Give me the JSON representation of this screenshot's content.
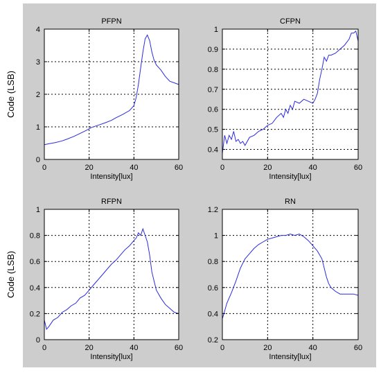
{
  "colors": {
    "panel_bg": "#cdcdcd",
    "axes_bg": "#ffffff",
    "line": "#2a2adf",
    "grid": "#000000"
  },
  "chart_data": [
    {
      "type": "line",
      "title": "PFPN",
      "xlabel": "Intensity[lux]",
      "ylabel": "Code (LSB)",
      "xlim": [
        0,
        60
      ],
      "ylim": [
        0,
        4
      ],
      "xticks": [
        0,
        20,
        40,
        60
      ],
      "yticks": [
        0,
        1,
        2,
        3,
        4
      ],
      "xtick_labels": [
        "0",
        "20",
        "40",
        "60"
      ],
      "ytick_labels": [
        "0",
        "1",
        "2",
        "3",
        "4"
      ],
      "grid": true,
      "series": [
        {
          "values": [
            [
              0,
              0.45
            ],
            [
              2,
              0.48
            ],
            [
              5,
              0.52
            ],
            [
              8,
              0.57
            ],
            [
              10,
              0.62
            ],
            [
              13,
              0.7
            ],
            [
              16,
              0.8
            ],
            [
              19,
              0.9
            ],
            [
              21,
              0.98
            ],
            [
              24,
              1.05
            ],
            [
              27,
              1.12
            ],
            [
              30,
              1.2
            ],
            [
              32,
              1.28
            ],
            [
              35,
              1.38
            ],
            [
              38,
              1.5
            ],
            [
              40,
              1.65
            ],
            [
              41,
              1.9
            ],
            [
              42,
              2.3
            ],
            [
              43,
              2.8
            ],
            [
              44,
              3.3
            ],
            [
              45,
              3.7
            ],
            [
              46,
              3.82
            ],
            [
              47,
              3.65
            ],
            [
              48,
              3.3
            ],
            [
              49,
              3.05
            ],
            [
              50,
              2.9
            ],
            [
              52,
              2.75
            ],
            [
              54,
              2.55
            ],
            [
              56,
              2.4
            ],
            [
              58,
              2.35
            ],
            [
              60,
              2.3
            ]
          ]
        }
      ]
    },
    {
      "type": "line",
      "title": "CFPN",
      "xlabel": "Intensity[lux]",
      "ylabel": "",
      "xlim": [
        0,
        60
      ],
      "ylim": [
        0.35,
        1
      ],
      "xticks": [
        0,
        20,
        40,
        60
      ],
      "yticks": [
        0.4,
        0.5,
        0.6,
        0.7,
        0.8,
        0.9,
        1
      ],
      "xtick_labels": [
        "0",
        "20",
        "40",
        "60"
      ],
      "ytick_labels": [
        "0.4",
        "0.5",
        "0.6",
        "0.7",
        "0.8",
        "0.9",
        "1"
      ],
      "grid": true,
      "series": [
        {
          "values": [
            [
              0,
              0.38
            ],
            [
              1,
              0.47
            ],
            [
              2,
              0.43
            ],
            [
              3,
              0.47
            ],
            [
              4,
              0.45
            ],
            [
              5,
              0.49
            ],
            [
              6,
              0.44
            ],
            [
              7,
              0.45
            ],
            [
              8,
              0.43
            ],
            [
              9,
              0.44
            ],
            [
              10,
              0.42
            ],
            [
              12,
              0.46
            ],
            [
              14,
              0.47
            ],
            [
              16,
              0.49
            ],
            [
              18,
              0.5
            ],
            [
              20,
              0.52
            ],
            [
              22,
              0.53
            ],
            [
              24,
              0.56
            ],
            [
              26,
              0.58
            ],
            [
              27,
              0.56
            ],
            [
              28,
              0.6
            ],
            [
              29,
              0.58
            ],
            [
              30,
              0.62
            ],
            [
              31,
              0.6
            ],
            [
              32,
              0.64
            ],
            [
              34,
              0.63
            ],
            [
              36,
              0.65
            ],
            [
              38,
              0.64
            ],
            [
              40,
              0.63
            ],
            [
              41,
              0.65
            ],
            [
              42,
              0.68
            ],
            [
              43,
              0.75
            ],
            [
              44,
              0.8
            ],
            [
              45,
              0.86
            ],
            [
              46,
              0.84
            ],
            [
              47,
              0.87
            ],
            [
              48,
              0.87
            ],
            [
              50,
              0.88
            ],
            [
              52,
              0.9
            ],
            [
              54,
              0.92
            ],
            [
              56,
              0.95
            ],
            [
              57,
              0.98
            ],
            [
              58,
              0.98
            ],
            [
              59,
              0.99
            ],
            [
              60,
              0.94
            ]
          ]
        }
      ]
    },
    {
      "type": "line",
      "title": "RFPN",
      "xlabel": "Intensity[lux]",
      "ylabel": "Code (LSB)",
      "xlim": [
        0,
        60
      ],
      "ylim": [
        0,
        1
      ],
      "xticks": [
        0,
        20,
        40,
        60
      ],
      "yticks": [
        0,
        0.2,
        0.4,
        0.6,
        0.8,
        1
      ],
      "xtick_labels": [
        "0",
        "20",
        "40",
        "60"
      ],
      "ytick_labels": [
        "0",
        "0.2",
        "0.4",
        "0.6",
        "0.8",
        "1"
      ],
      "grid": true,
      "series": [
        {
          "values": [
            [
              0,
              0.15
            ],
            [
              1,
              0.08
            ],
            [
              2,
              0.1
            ],
            [
              4,
              0.15
            ],
            [
              6,
              0.17
            ],
            [
              8,
              0.21
            ],
            [
              10,
              0.23
            ],
            [
              12,
              0.26
            ],
            [
              14,
              0.28
            ],
            [
              16,
              0.32
            ],
            [
              18,
              0.34
            ],
            [
              20,
              0.38
            ],
            [
              22,
              0.42
            ],
            [
              24,
              0.46
            ],
            [
              26,
              0.5
            ],
            [
              28,
              0.54
            ],
            [
              30,
              0.58
            ],
            [
              32,
              0.61
            ],
            [
              34,
              0.65
            ],
            [
              36,
              0.69
            ],
            [
              38,
              0.72
            ],
            [
              40,
              0.76
            ],
            [
              41,
              0.78
            ],
            [
              42,
              0.82
            ],
            [
              43,
              0.8
            ],
            [
              44,
              0.85
            ],
            [
              45,
              0.8
            ],
            [
              46,
              0.75
            ],
            [
              47,
              0.65
            ],
            [
              48,
              0.52
            ],
            [
              49,
              0.45
            ],
            [
              50,
              0.38
            ],
            [
              52,
              0.32
            ],
            [
              54,
              0.27
            ],
            [
              56,
              0.24
            ],
            [
              58,
              0.21
            ],
            [
              60,
              0.2
            ]
          ]
        }
      ]
    },
    {
      "type": "line",
      "title": "RN",
      "xlabel": "Intensity[lux]",
      "ylabel": "",
      "xlim": [
        0,
        60
      ],
      "ylim": [
        0.2,
        1.2
      ],
      "xticks": [
        0,
        20,
        40,
        60
      ],
      "yticks": [
        0.2,
        0.4,
        0.6,
        0.8,
        1,
        1.2
      ],
      "xtick_labels": [
        "0",
        "20",
        "40",
        "60"
      ],
      "ytick_labels": [
        "0.2",
        "0.4",
        "0.6",
        "0.8",
        "1",
        "1.2"
      ],
      "grid": true,
      "series": [
        {
          "values": [
            [
              0,
              0.36
            ],
            [
              1,
              0.42
            ],
            [
              2,
              0.48
            ],
            [
              4,
              0.56
            ],
            [
              6,
              0.65
            ],
            [
              8,
              0.75
            ],
            [
              10,
              0.82
            ],
            [
              12,
              0.86
            ],
            [
              14,
              0.9
            ],
            [
              16,
              0.93
            ],
            [
              18,
              0.95
            ],
            [
              20,
              0.97
            ],
            [
              22,
              0.98
            ],
            [
              24,
              0.99
            ],
            [
              26,
              1.0
            ],
            [
              28,
              1.0
            ],
            [
              30,
              1.01
            ],
            [
              32,
              1.0
            ],
            [
              34,
              1.01
            ],
            [
              36,
              0.99
            ],
            [
              38,
              0.96
            ],
            [
              40,
              0.92
            ],
            [
              42,
              0.88
            ],
            [
              44,
              0.82
            ],
            [
              45,
              0.75
            ],
            [
              46,
              0.68
            ],
            [
              47,
              0.63
            ],
            [
              48,
              0.6
            ],
            [
              50,
              0.57
            ],
            [
              52,
              0.55
            ],
            [
              54,
              0.55
            ],
            [
              56,
              0.55
            ],
            [
              58,
              0.55
            ],
            [
              60,
              0.54
            ]
          ]
        }
      ]
    }
  ]
}
